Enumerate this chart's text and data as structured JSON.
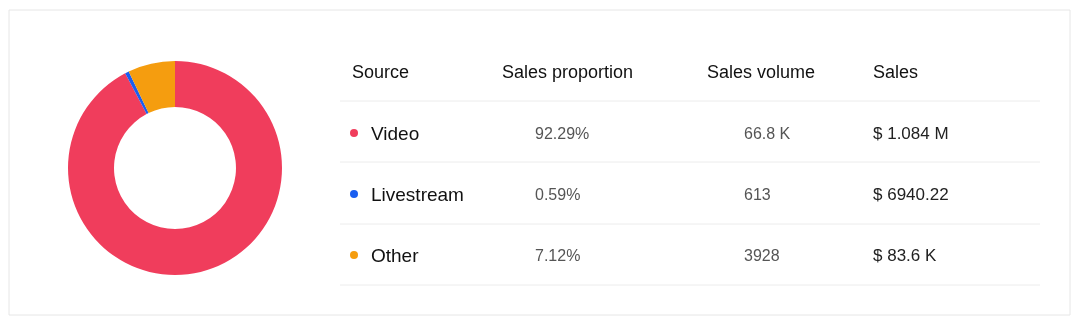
{
  "chart_data": [
    {
      "type": "donut",
      "legend_title": "Source",
      "legend": "right",
      "categories": [
        "Video",
        "Livestream",
        "Other"
      ],
      "values": [
        92.29,
        0.59,
        7.12
      ],
      "colors": [
        "#f03d5c",
        "#1a5ef0",
        "#f59d0f"
      ]
    },
    {
      "type": "other",
      "annotations": [
        "Sales proportion",
        "92.29%",
        "0.59%",
        "7.12%",
        "Sales volume",
        "66.8 K",
        "613",
        "3928",
        "Sales",
        "$ 1.084 M",
        "$ 6940.22",
        "$ 83.6 K"
      ]
    }
  ]
}
